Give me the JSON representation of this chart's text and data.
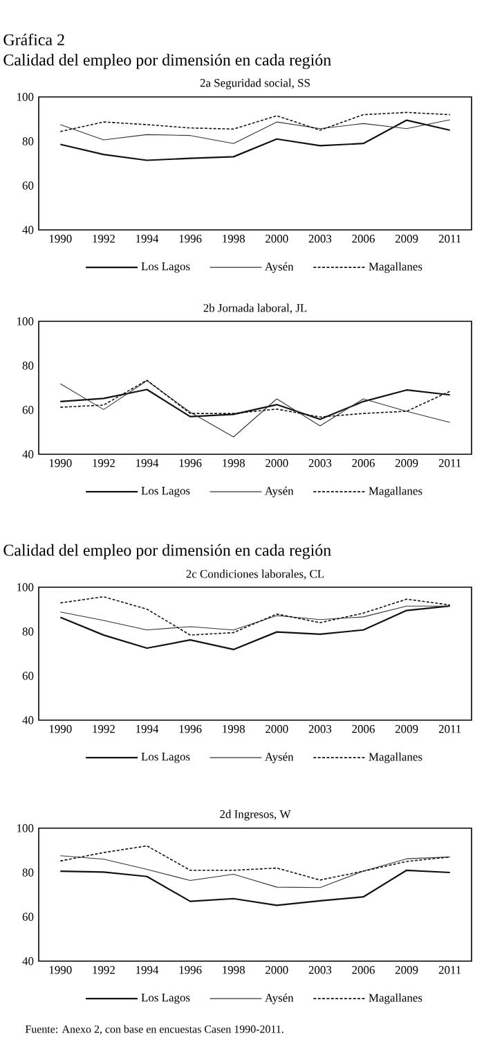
{
  "chart_data": [
    {
      "type": "line",
      "title": "2a Seguridad social, SS",
      "annotations": [
        "Gráfica 2",
        "Calidad del empleo por dimensión en cada región"
      ],
      "categories": [
        "1990",
        "1992",
        "1994",
        "1996",
        "1998",
        "2000",
        "2003",
        "2006",
        "2009",
        "2011"
      ],
      "series": [
        {
          "name": "Los Lagos",
          "color": "#111111",
          "line_style": "solid",
          "values": [
            78.6,
            74,
            71.4,
            72.3,
            73,
            81,
            78,
            79,
            89.5,
            85
          ]
        },
        {
          "name": "Aysén",
          "color": "#333333",
          "line_style": "solid",
          "values": [
            87.5,
            80.6,
            83,
            82.6,
            79,
            88.7,
            85.7,
            88,
            85.7,
            89.7
          ]
        },
        {
          "name": "Magallanes",
          "color": "#111111",
          "line_style": "dashed",
          "values": [
            84.4,
            88.7,
            87.5,
            86,
            85.5,
            91.5,
            85,
            92,
            93,
            92
          ]
        }
      ],
      "ylim": [
        40,
        100
      ],
      "yticks": [
        40,
        60,
        80,
        100
      ],
      "legend": "bottom"
    },
    {
      "type": "line",
      "title": "2b Jornada laboral, JL",
      "categories": [
        "1990",
        "1992",
        "1994",
        "1996",
        "1998",
        "2000",
        "2003",
        "2006",
        "2009",
        "2011"
      ],
      "series": [
        {
          "name": "Los Lagos",
          "color": "#111111",
          "line_style": "solid",
          "values": [
            63.8,
            65.2,
            69.2,
            57,
            58,
            62.4,
            55.8,
            63.8,
            69,
            66.8
          ]
        },
        {
          "name": "Aysén",
          "color": "#333333",
          "line_style": "solid",
          "values": [
            71.8,
            60.2,
            73.2,
            59,
            47.8,
            65,
            52.8,
            65,
            59.4,
            54.4
          ]
        },
        {
          "name": "Magallanes",
          "color": "#111111",
          "line_style": "dashed",
          "values": [
            61.2,
            62.2,
            73.4,
            58.4,
            58.4,
            60.4,
            56.8,
            58.4,
            59.4,
            68.4
          ]
        }
      ],
      "ylim": [
        40,
        100
      ],
      "yticks": [
        40,
        60,
        80,
        100
      ],
      "legend": "bottom"
    },
    {
      "type": "line",
      "title": "2c Condiciones laborales, CL",
      "annotations": [
        "Calidad del empleo por dimensión en cada región"
      ],
      "categories": [
        "1990",
        "1992",
        "1994",
        "1996",
        "1998",
        "2000",
        "2003",
        "2006",
        "2009",
        "2011"
      ],
      "series": [
        {
          "name": "Los Lagos",
          "color": "#111111",
          "line_style": "solid",
          "values": [
            86.4,
            78.4,
            72.5,
            76.2,
            71.9,
            79.8,
            78.8,
            80.7,
            89.5,
            91.5
          ]
        },
        {
          "name": "Aysén",
          "color": "#333333",
          "line_style": "solid",
          "values": [
            88.8,
            85,
            80.7,
            82.2,
            80.7,
            87.2,
            85.4,
            86.6,
            91.5,
            91.5
          ]
        },
        {
          "name": "Magallanes",
          "color": "#111111",
          "line_style": "dashed",
          "values": [
            92.9,
            95.7,
            90.1,
            78.4,
            79.5,
            87.9,
            84,
            88.3,
            94.6,
            92
          ]
        }
      ],
      "ylim": [
        40,
        100
      ],
      "yticks": [
        40,
        60,
        80,
        100
      ],
      "legend": "bottom"
    },
    {
      "type": "line",
      "title": "2d Ingresos, W",
      "annotations": [
        "Fuente: Anexo 2, con base en encuestas Casen 1990-2011."
      ],
      "categories": [
        "1990",
        "1992",
        "1994",
        "1996",
        "1998",
        "2000",
        "2003",
        "2006",
        "2009",
        "2011"
      ],
      "series": [
        {
          "name": "Los Lagos",
          "color": "#111111",
          "line_style": "solid",
          "values": [
            80.6,
            80.2,
            78.2,
            67,
            68.2,
            65.2,
            67.2,
            69,
            81,
            80
          ]
        },
        {
          "name": "Aysén",
          "color": "#333333",
          "line_style": "solid",
          "values": [
            87.6,
            86,
            81.4,
            76.4,
            79.2,
            73.4,
            73.2,
            80.6,
            86.2,
            87
          ]
        },
        {
          "name": "Magallanes",
          "color": "#111111",
          "line_style": "dashed",
          "values": [
            85.2,
            89,
            92,
            81,
            81,
            82,
            76.6,
            80.6,
            85,
            87
          ]
        }
      ],
      "ylim": [
        40,
        100
      ],
      "yticks": [
        40,
        60,
        80,
        100
      ],
      "legend": "bottom"
    }
  ]
}
